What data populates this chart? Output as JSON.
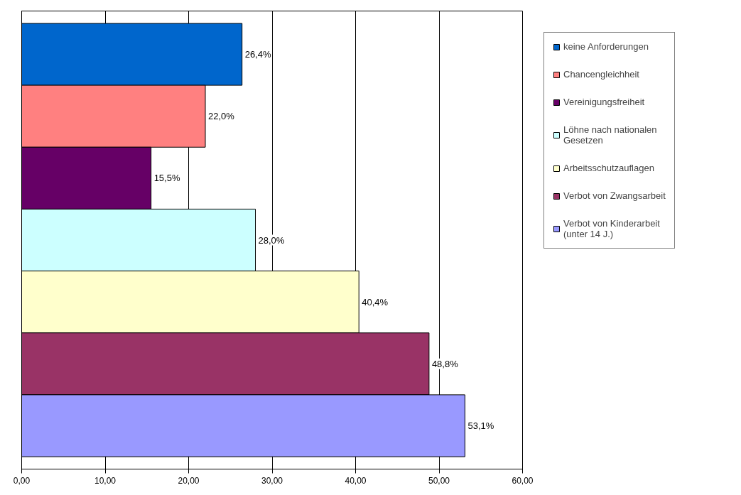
{
  "chart_data": {
    "type": "bar",
    "orientation": "horizontal",
    "categories": [
      null
    ],
    "series": [
      {
        "name": "keine Anforderungen",
        "color": "#0066cc",
        "values": [
          26.4
        ],
        "value_labels": [
          "26,4%"
        ]
      },
      {
        "name": "Chancengleichheit",
        "color": "#ff8080",
        "values": [
          22.0
        ],
        "value_labels": [
          "22,0%"
        ]
      },
      {
        "name": "Vereinigungsfreiheit",
        "color": "#660066",
        "values": [
          15.5
        ],
        "value_labels": [
          "15,5%"
        ]
      },
      {
        "name": "Löhne nach nationalen Gesetzen",
        "color": "#ccffff",
        "values": [
          28.0
        ],
        "value_labels": [
          "28,0%"
        ]
      },
      {
        "name": "Arbeitsschutzauflagen",
        "color": "#ffffcc",
        "values": [
          40.4
        ],
        "value_labels": [
          "40,4%"
        ]
      },
      {
        "name": "Verbot von Zwangsarbeit",
        "color": "#993366",
        "values": [
          48.8
        ],
        "value_labels": [
          "48,8%"
        ]
      },
      {
        "name": "Verbot von Kinderarbeit (unter 14 J.)",
        "color": "#9999ff",
        "values": [
          53.1
        ],
        "value_labels": [
          "53,1%"
        ]
      }
    ],
    "xlim": [
      0,
      60
    ],
    "xticks": [
      {
        "value": 0,
        "label": "0,00"
      },
      {
        "value": 10,
        "label": "10,00"
      },
      {
        "value": 20,
        "label": "20,00"
      },
      {
        "value": 30,
        "label": "30,00"
      },
      {
        "value": 40,
        "label": "40,00"
      },
      {
        "value": 50,
        "label": "50,00"
      },
      {
        "value": 60,
        "label": "60,00"
      }
    ],
    "grid": "x",
    "legend": "right",
    "tick_labels": "x"
  }
}
